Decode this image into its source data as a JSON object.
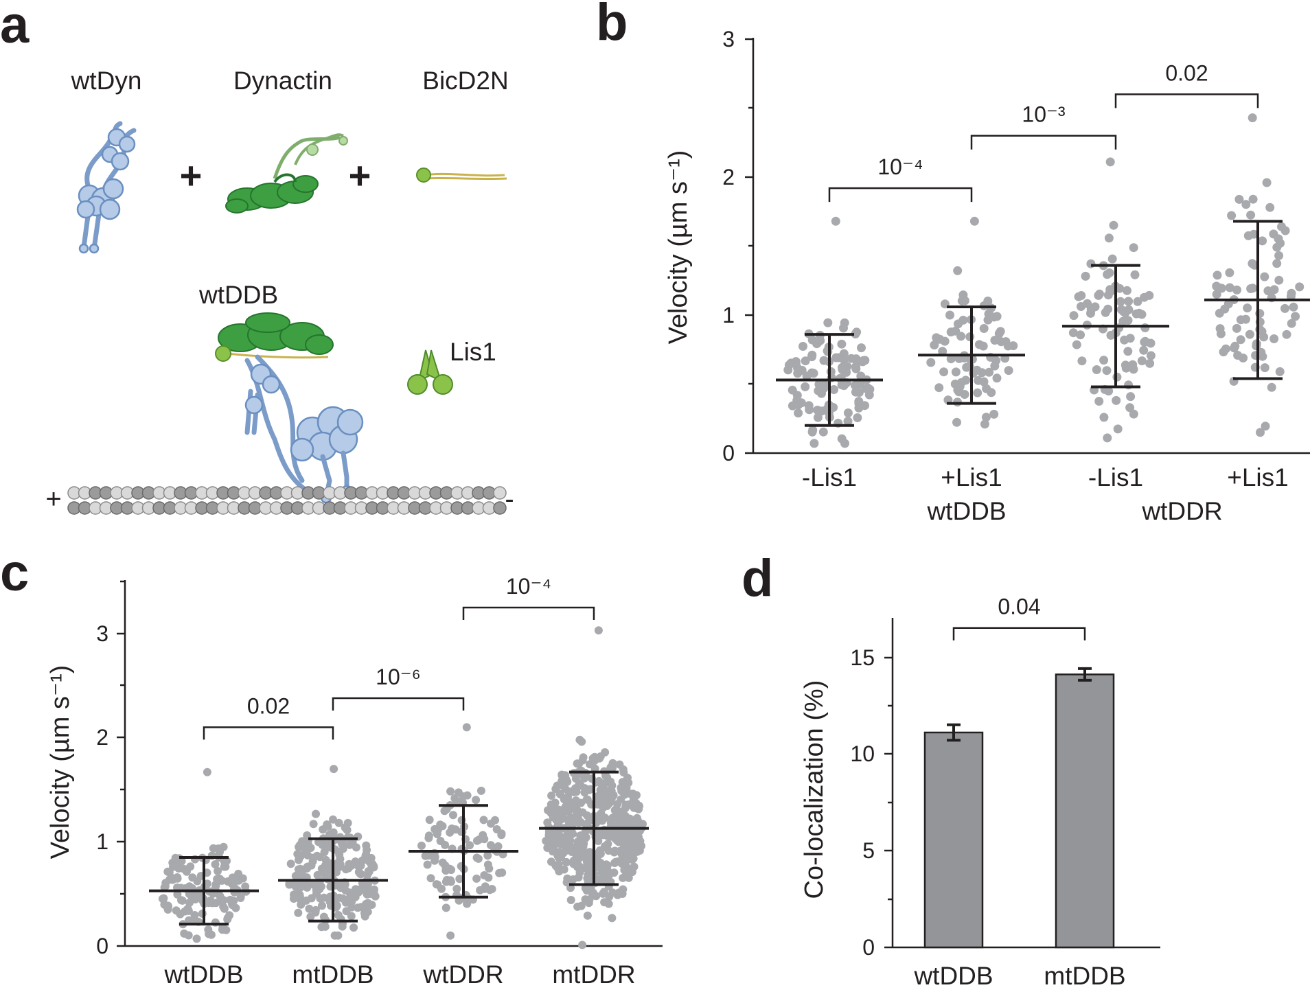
{
  "panels": {
    "a": {
      "label": "a",
      "components": [
        "wtDyn",
        "Dynactin",
        "BicD2N"
      ],
      "plus_sign": "+",
      "complex_label": "wtDDB",
      "lis1_label": "Lis1",
      "mt_plus": "+",
      "mt_minus": "-"
    },
    "b": {
      "label": "b",
      "ylabel": "Velocity (µm s⁻¹)",
      "yticks": [
        "0",
        "1",
        "2",
        "3"
      ],
      "groups": [
        "wtDDB",
        "wtDDR"
      ],
      "pvalues": [
        "10⁻⁴",
        "10⁻³",
        "0.02"
      ]
    },
    "c": {
      "label": "c",
      "ylabel": "Velocity (µm s⁻¹)",
      "yticks": [
        "0",
        "1",
        "2",
        "3"
      ],
      "pvalues": [
        "0.02",
        "10⁻⁶",
        "10⁻⁴"
      ]
    },
    "d": {
      "label": "d",
      "ylabel": "Co-localization (%)",
      "yticks": [
        "0",
        "5",
        "10",
        "15"
      ],
      "pvalues": [
        "0.04"
      ]
    }
  },
  "colors": {
    "dot": "#a7a9ac",
    "bar": "#939598",
    "dynein": "#b5cbe8",
    "dynactin": "#3d9e42"
  },
  "chart_data": [
    {
      "panel": "b",
      "type": "scatter",
      "title": "",
      "xlabel": "",
      "ylabel": "Velocity (µm s⁻¹)",
      "ylim": [
        0,
        3
      ],
      "categories": [
        "-Lis1",
        "+Lis1",
        "-Lis1",
        "+Lis1"
      ],
      "groups": [
        {
          "name": "wtDDB",
          "categories": [
            0,
            1
          ]
        },
        {
          "name": "wtDDR",
          "categories": [
            2,
            3
          ]
        }
      ],
      "series": [
        {
          "name": "wtDDB -Lis1",
          "n": 110,
          "mean": 0.53,
          "sd_low": 0.2,
          "sd_high": 0.86,
          "min": 0.07,
          "max": 1.68
        },
        {
          "name": "wtDDB +Lis1",
          "n": 80,
          "mean": 0.71,
          "sd_low": 0.36,
          "sd_high": 1.06,
          "min": 0.21,
          "max": 1.68
        },
        {
          "name": "wtDDR -Lis1",
          "n": 85,
          "mean": 0.92,
          "sd_low": 0.48,
          "sd_high": 1.36,
          "min": 0.11,
          "max": 2.11
        },
        {
          "name": "wtDDR +Lis1",
          "n": 80,
          "mean": 1.11,
          "sd_low": 0.54,
          "sd_high": 1.68,
          "min": 0.15,
          "max": 2.43
        }
      ],
      "comparisons": [
        {
          "between": [
            0,
            1
          ],
          "p": "10⁻⁴"
        },
        {
          "between": [
            1,
            2
          ],
          "p": "10⁻³"
        },
        {
          "between": [
            2,
            3
          ],
          "p": "0.02"
        }
      ]
    },
    {
      "panel": "c",
      "type": "scatter",
      "title": "",
      "xlabel": "",
      "ylabel": "Velocity (µm s⁻¹)",
      "ylim": [
        0,
        3.5
      ],
      "categories": [
        "wtDDB",
        "mtDDB",
        "wtDDR",
        "mtDDR"
      ],
      "series": [
        {
          "name": "wtDDB",
          "n": 140,
          "mean": 0.53,
          "sd_low": 0.21,
          "sd_high": 0.85,
          "min": 0.07,
          "max": 1.67
        },
        {
          "name": "mtDDB",
          "n": 220,
          "mean": 0.63,
          "sd_low": 0.24,
          "sd_high": 1.03,
          "min": 0.1,
          "max": 1.7
        },
        {
          "name": "wtDDR",
          "n": 100,
          "mean": 0.91,
          "sd_low": 0.47,
          "sd_high": 1.35,
          "min": 0.1,
          "max": 2.1
        },
        {
          "name": "mtDDR",
          "n": 480,
          "mean": 1.13,
          "sd_low": 0.59,
          "sd_high": 1.67,
          "min": 0.01,
          "max": 3.03
        }
      ],
      "comparisons": [
        {
          "between": [
            0,
            1
          ],
          "p": "0.02"
        },
        {
          "between": [
            1,
            2
          ],
          "p": "10⁻⁶"
        },
        {
          "between": [
            2,
            3
          ],
          "p": "10⁻⁴"
        }
      ]
    },
    {
      "panel": "d",
      "type": "bar",
      "title": "",
      "xlabel": "",
      "ylabel": "Co-localization (%)",
      "ylim": [
        0,
        17
      ],
      "categories": [
        "wtDDB",
        "mtDDB"
      ],
      "values": [
        11.1,
        14.1
      ],
      "errors": [
        0.4,
        0.3
      ],
      "comparisons": [
        {
          "between": [
            0,
            1
          ],
          "p": "0.04"
        }
      ]
    }
  ]
}
